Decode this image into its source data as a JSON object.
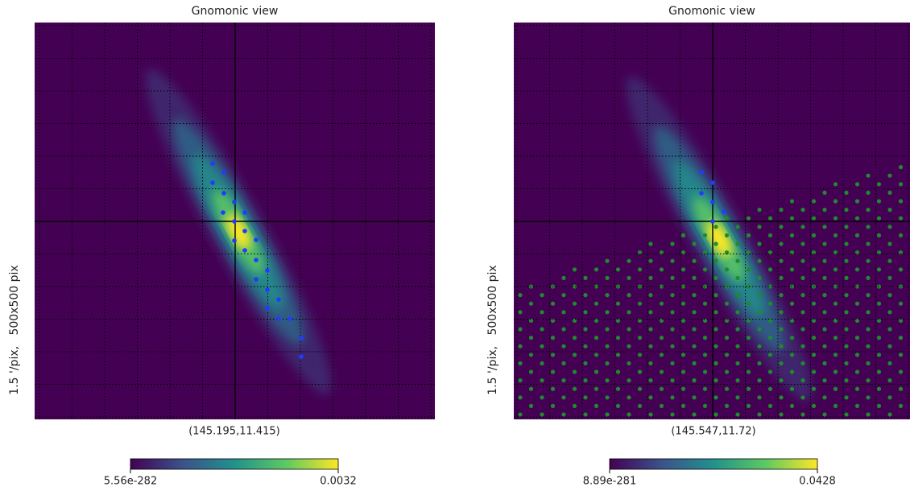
{
  "chart_data": [
    {
      "type": "heatmap",
      "title": "Gnomonic view",
      "xlabel": "(145.195,11.415)",
      "ylabel": "1.5 '/pix,   500x500 pix",
      "clim": [
        5.56e-282,
        0.0032
      ]
    },
    {
      "type": "heatmap",
      "title": "Gnomonic view",
      "xlabel": "(145.547,11.72)",
      "ylabel": "1.5 '/pix,   500x500 pix",
      "clim": [
        8.89e-281,
        0.0428
      ]
    }
  ]
}
